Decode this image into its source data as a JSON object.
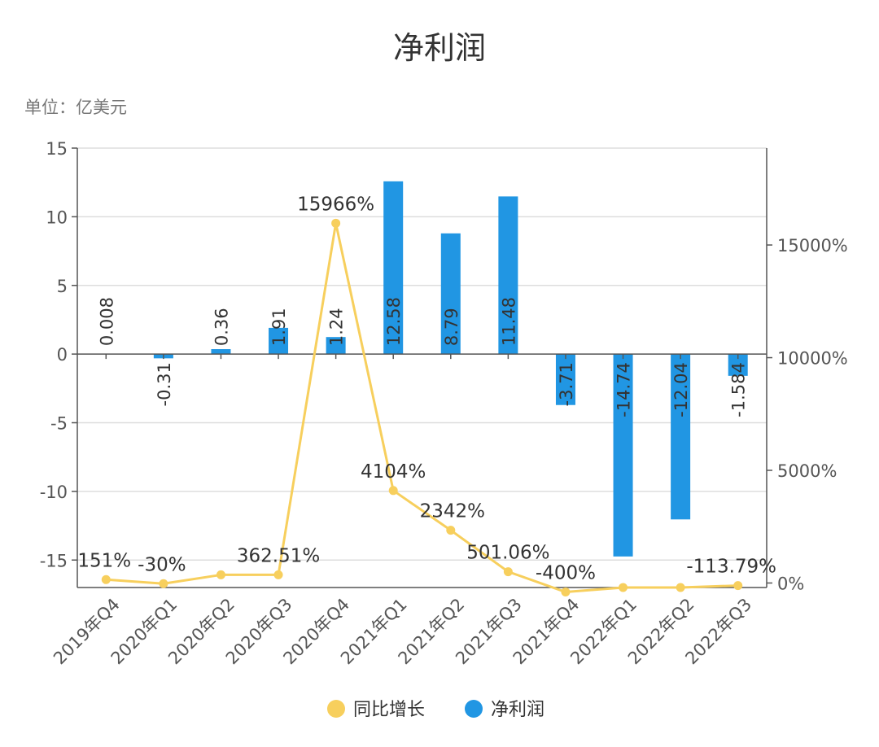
{
  "chart_data": {
    "title": "净利润",
    "unit": "单位：亿美元",
    "categories": [
      "2019年Q4",
      "2020年Q1",
      "2020年Q2",
      "2020年Q3",
      "2020年Q4",
      "2021年Q1",
      "2021年Q2",
      "2021年Q3",
      "2021年Q4",
      "2022年Q1",
      "2022年Q2",
      "2022年Q3"
    ],
    "series": [
      {
        "name": "净利润",
        "type": "bar",
        "axis": "left",
        "color": "#2196e3",
        "values": [
          0.008,
          -0.31,
          0.36,
          1.91,
          1.24,
          12.58,
          8.79,
          11.48,
          -3.71,
          -14.74,
          -12.04,
          -1.584
        ],
        "labels": [
          "0.008",
          "-0.31",
          "0.36",
          "1.91",
          "1.24",
          "12.58",
          "8.79",
          "11.48",
          "-3.71",
          "-14.74",
          "-12.04",
          "-1.584"
        ]
      },
      {
        "name": "同比增长",
        "type": "line",
        "axis": "right",
        "color": "#f7cf5d",
        "values": [
          151,
          -30,
          362.51,
          362.51,
          15966,
          4104,
          2342,
          501.06,
          -400,
          -200,
          -200,
          -113.79
        ],
        "labels": [
          "151%",
          "-30%",
          "",
          "362.51%",
          "15966%",
          "4104%",
          "2342%",
          "501.06%",
          "-400%",
          "",
          "",
          "-113.79%"
        ]
      }
    ],
    "y_left": {
      "min": -17,
      "max": 15,
      "ticks": [
        15,
        10,
        5,
        0,
        -5,
        -10,
        -15
      ],
      "tick_labels": [
        "15",
        "10",
        "5",
        "0",
        "-5",
        "-10",
        "-15"
      ]
    },
    "y_right": {
      "min": -200,
      "max": 19300,
      "ticks": [
        15000,
        10000,
        5000,
        0
      ],
      "tick_labels": [
        "15000%",
        "10000%",
        "5000%",
        "0%"
      ]
    },
    "grid": true,
    "legend_position": "bottom"
  }
}
